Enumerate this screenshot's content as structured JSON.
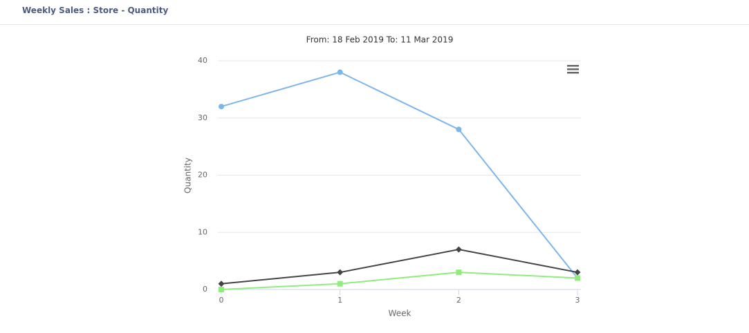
{
  "header": {
    "title": "Weekly Sales : Store - Quantity"
  },
  "chart_data": {
    "type": "line",
    "subtitle": "From:  18 Feb 2019  To:  11 Mar 2019",
    "x_label": "Week",
    "y_label": "Quantity",
    "x": [
      0,
      1,
      2,
      3
    ],
    "series": [
      {
        "color": "#7cb5ec",
        "marker": "circle",
        "values": [
          32,
          38,
          28,
          2
        ]
      },
      {
        "color": "#434348",
        "marker": "diamond",
        "values": [
          1,
          3,
          7,
          3
        ]
      },
      {
        "color": "#90ed7d",
        "marker": "square",
        "values": [
          0,
          1,
          3,
          2
        ]
      }
    ],
    "xlim": [
      0,
      3
    ],
    "xticks": [
      0,
      1,
      2,
      3
    ],
    "ylim": [
      0,
      40
    ],
    "yticks": [
      0,
      10,
      20,
      30,
      40
    ],
    "grid": true
  }
}
